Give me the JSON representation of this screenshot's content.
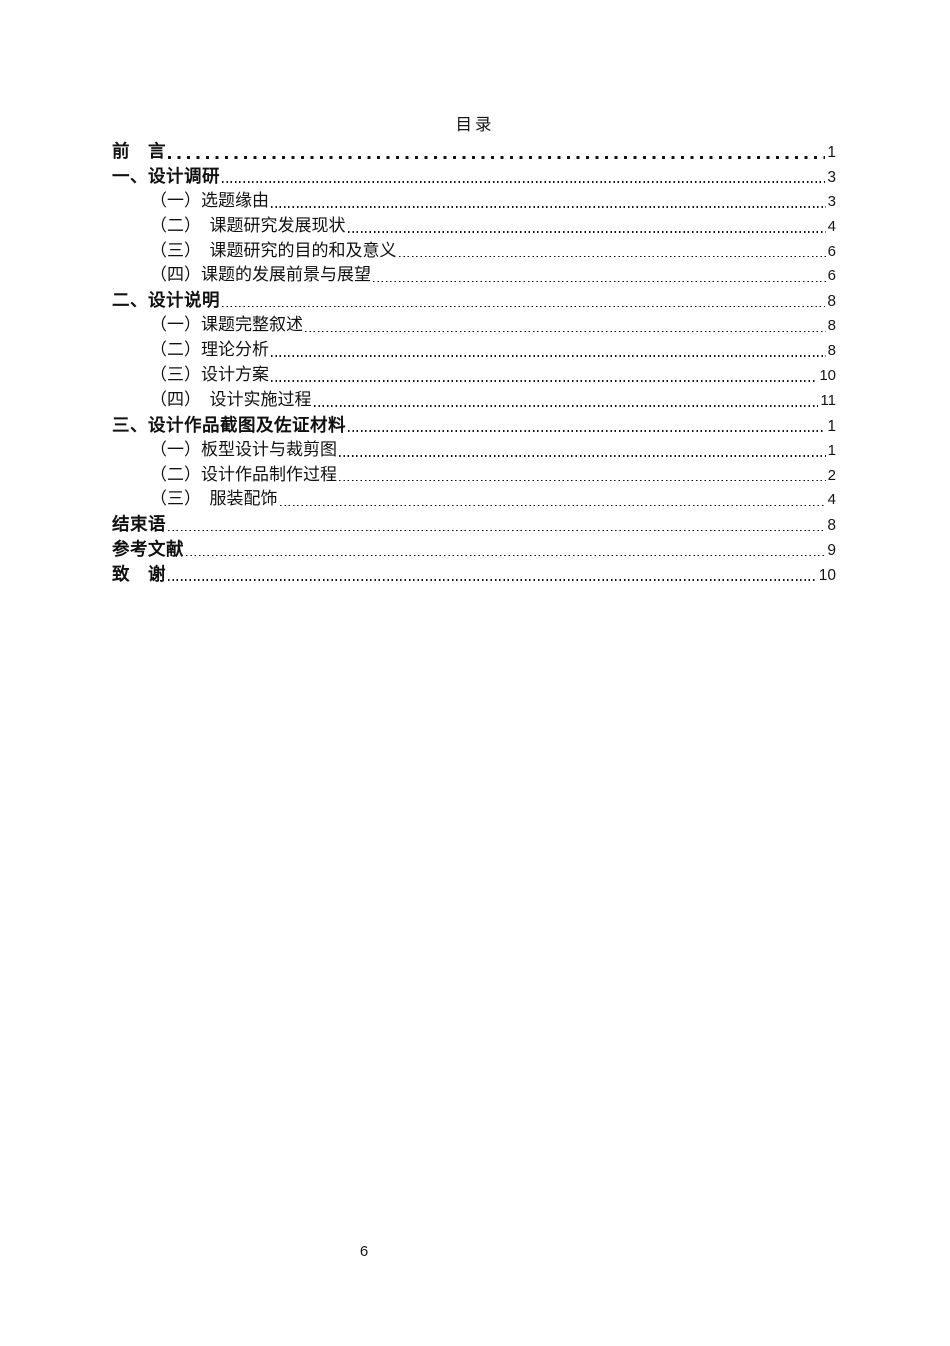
{
  "page": {
    "title": "目录",
    "footer_page_number": "6"
  },
  "toc": {
    "entries": [
      {
        "label": "前　言",
        "page": "1",
        "level": "chapter",
        "leader": "coarse"
      },
      {
        "label": "一、设计调研",
        "page": "3",
        "level": "chapter",
        "leader": "fine"
      },
      {
        "label": "（一）选题缘由",
        "page": "3",
        "level": "sub",
        "leader": "fine"
      },
      {
        "label": "（二）　课题研究发展现状",
        "page": "4",
        "level": "sub",
        "leader": "fine"
      },
      {
        "label": "（三）　课题研究的目的和及意义",
        "page": "6",
        "level": "sub",
        "leader": "fine"
      },
      {
        "label": "（四）课题的发展前景与展望",
        "page": "6",
        "level": "sub",
        "leader": "fine"
      },
      {
        "label": "二、设计说明",
        "page": "8",
        "level": "chapter",
        "leader": "fine"
      },
      {
        "label": "（一）课题完整叙述",
        "page": "8",
        "level": "sub",
        "leader": "fine"
      },
      {
        "label": "（二）理论分析",
        "page": "8",
        "level": "sub",
        "leader": "fine"
      },
      {
        "label": "（三）设计方案",
        "page": "10",
        "level": "sub",
        "leader": "fine"
      },
      {
        "label": "（四）　设计实施过程",
        "page": "11",
        "level": "sub",
        "leader": "fine"
      },
      {
        "label": "三、设计作品截图及佐证材料",
        "page": "1",
        "level": "chapter",
        "leader": "fine"
      },
      {
        "label": "（一）板型设计与裁剪图",
        "page": "1",
        "level": "sub",
        "leader": "fine"
      },
      {
        "label": "（二）设计作品制作过程",
        "page": "2",
        "level": "sub",
        "leader": "fine"
      },
      {
        "label": "（三）　服装配饰",
        "page": "4",
        "level": "sub",
        "leader": "fine"
      },
      {
        "label": "结束语",
        "page": "8",
        "level": "chapter",
        "leader": "fine"
      },
      {
        "label": "参考文献",
        "page": "9",
        "level": "chapter",
        "leader": "fine"
      },
      {
        "label": "致　谢",
        "page": "10",
        "level": "chapter",
        "leader": "fine"
      }
    ]
  }
}
